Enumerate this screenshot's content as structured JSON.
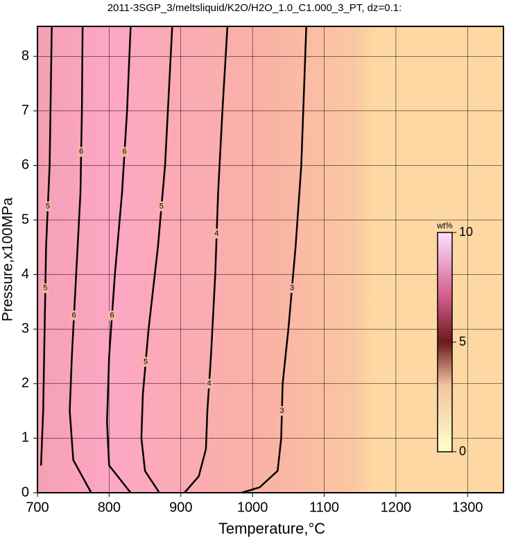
{
  "chart_data": {
    "type": "contour",
    "title": "2011-3SGP_3/meltsliquid/K2O/H2O_1.0_C1.000_3_PT, dz=0.1:",
    "x_label": "Temperature,°C",
    "y_label": "Pressure,x100MPa",
    "xlim": [
      700,
      1350
    ],
    "xticks": [
      700,
      800,
      900,
      1000,
      1100,
      1200,
      1300
    ],
    "ylim": [
      0,
      8.55
    ],
    "yticks": [
      0,
      1,
      2,
      3,
      4,
      5,
      6,
      7,
      8
    ],
    "grid": true,
    "contours": [
      {
        "level": 5,
        "x": [
          705,
          708,
          710,
          712,
          717,
          720
        ],
        "y": [
          0.5,
          1.5,
          3,
          4.5,
          6,
          8.55
        ]
      },
      {
        "level": 6,
        "x": [
          775,
          750,
          745,
          748,
          754,
          760,
          762,
          763
        ],
        "y": [
          0,
          0.6,
          1.5,
          2.5,
          4,
          5.5,
          7,
          8.55
        ]
      },
      {
        "level": 6,
        "x": [
          830,
          800,
          797,
          800,
          808,
          818,
          825,
          830
        ],
        "y": [
          0,
          0.5,
          1.3,
          2.5,
          4,
          5.5,
          7,
          8.55
        ]
      },
      {
        "level": 5,
        "x": [
          870,
          850,
          845,
          847,
          855,
          868,
          878,
          888
        ],
        "y": [
          0,
          0.4,
          1,
          1.8,
          3,
          4.5,
          6,
          8.55
        ]
      },
      {
        "level": 4,
        "x": [
          905,
          925,
          935,
          937,
          942,
          948,
          952,
          958,
          965
        ],
        "y": [
          0,
          0.3,
          0.8,
          1.5,
          2.5,
          4,
          5.5,
          7,
          8.55
        ]
      },
      {
        "level": 3,
        "x": [
          985,
          1010,
          1035,
          1040,
          1042,
          1050,
          1060,
          1068,
          1075
        ],
        "y": [
          0,
          0.1,
          0.4,
          1,
          2,
          3,
          4.5,
          6,
          8.55
        ]
      }
    ],
    "colorbar": {
      "label": "wt%",
      "lim": [
        0,
        10
      ],
      "ticks": [
        0,
        5,
        10
      ]
    }
  }
}
